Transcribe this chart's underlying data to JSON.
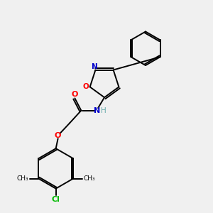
{
  "background_color": "#f0f0f0",
  "bond_color": "#000000",
  "atom_colors": {
    "O": "#ff0000",
    "N": "#0000cc",
    "Cl": "#00bb00",
    "H": "#66aaaa",
    "C": "#000000"
  },
  "figsize": [
    3.0,
    3.0
  ],
  "dpi": 100
}
